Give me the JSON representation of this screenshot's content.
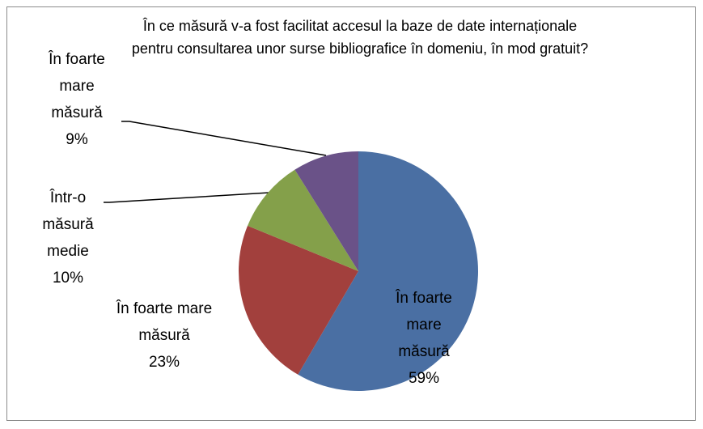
{
  "chart_data": {
    "type": "pie",
    "title": "În ce măsură v-a fost facilitat accesul la baze de date internaționale pentru consultarea unor surse bibliografice în domeniu, în mod gratuit?",
    "categories": [
      "În foarte mare măsură",
      "În foarte mare măsură",
      "Într-o măsură medie",
      "În foarte mare măsură"
    ],
    "values": [
      59,
      23,
      10,
      9
    ],
    "value_labels": [
      "59%",
      "23%",
      "10%",
      "9%"
    ],
    "colors": [
      "#4a6fa3",
      "#a2403d",
      "#84a04a",
      "#6a5288"
    ]
  }
}
